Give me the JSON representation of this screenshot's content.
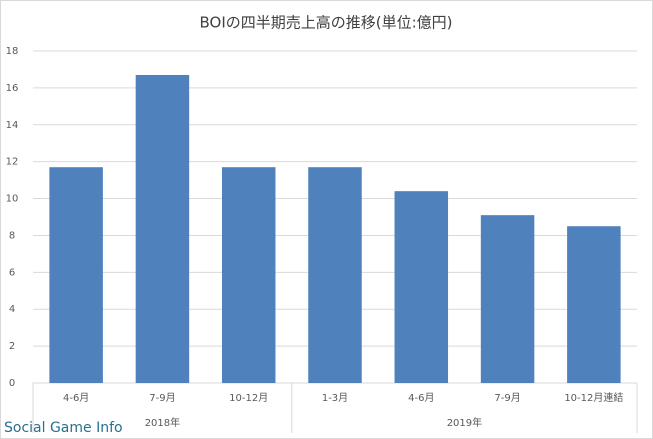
{
  "chart_data": {
    "type": "bar",
    "title": "BOIの四半期売上高の推移(単位:億円)",
    "categories": [
      "4-6月",
      "7-9月",
      "10-12月",
      "1-3月",
      "4-6月",
      "7-9月",
      "10-12月連結"
    ],
    "groups": [
      "2018年",
      null,
      null,
      "2019年",
      null,
      null,
      null
    ],
    "values": [
      11.7,
      16.7,
      11.7,
      11.7,
      10.4,
      9.1,
      8.5
    ],
    "color": "#4f81bd",
    "ylim": [
      0,
      18
    ],
    "yticks": [
      0,
      2,
      4,
      6,
      8,
      10,
      12,
      14,
      16,
      18
    ],
    "grid": true,
    "watermark": "Social Game Info"
  }
}
